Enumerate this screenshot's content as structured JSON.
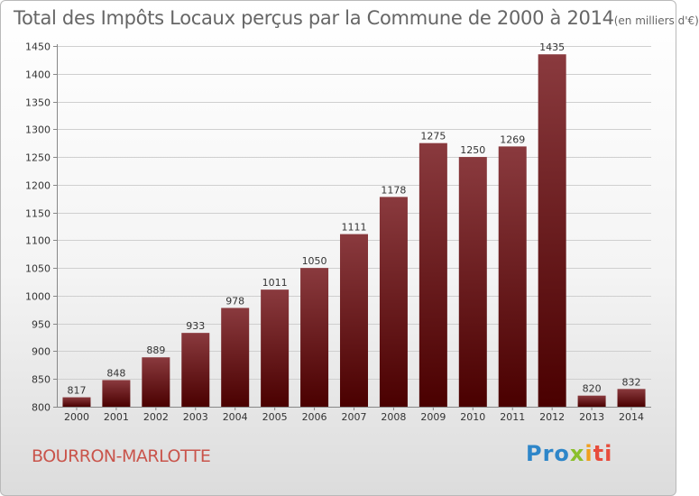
{
  "title": "Total des Impôts Locaux perçus par la Commune de 2000 à 2014",
  "subtitle": "(en milliers d'€)",
  "commune": "BOURRON-MARLOTTE",
  "logo": {
    "p1": "Pro",
    "p2": "x",
    "p3": "i",
    "p4": "ti"
  },
  "colors": {
    "bar_top": "#8a3a3e",
    "bar_bottom": "#4a0000",
    "title": "#666666",
    "commune": "#c9544b"
  },
  "chart_data": {
    "type": "bar",
    "title": "Total des Impôts Locaux perçus par la Commune de 2000 à 2014 (en milliers d'€)",
    "xlabel": "",
    "ylabel": "",
    "categories": [
      "2000",
      "2001",
      "2002",
      "2003",
      "2004",
      "2005",
      "2006",
      "2007",
      "2008",
      "2009",
      "2010",
      "2011",
      "2012",
      "2013",
      "2014"
    ],
    "values": [
      817,
      848,
      889,
      933,
      978,
      1011,
      1050,
      1111,
      1178,
      1275,
      1250,
      1269,
      1435,
      820,
      832
    ],
    "ylim": [
      800,
      1450
    ],
    "yticks": [
      800,
      850,
      900,
      950,
      1000,
      1050,
      1100,
      1150,
      1200,
      1250,
      1300,
      1350,
      1400,
      1450
    ],
    "grid": true,
    "legend": "none"
  }
}
